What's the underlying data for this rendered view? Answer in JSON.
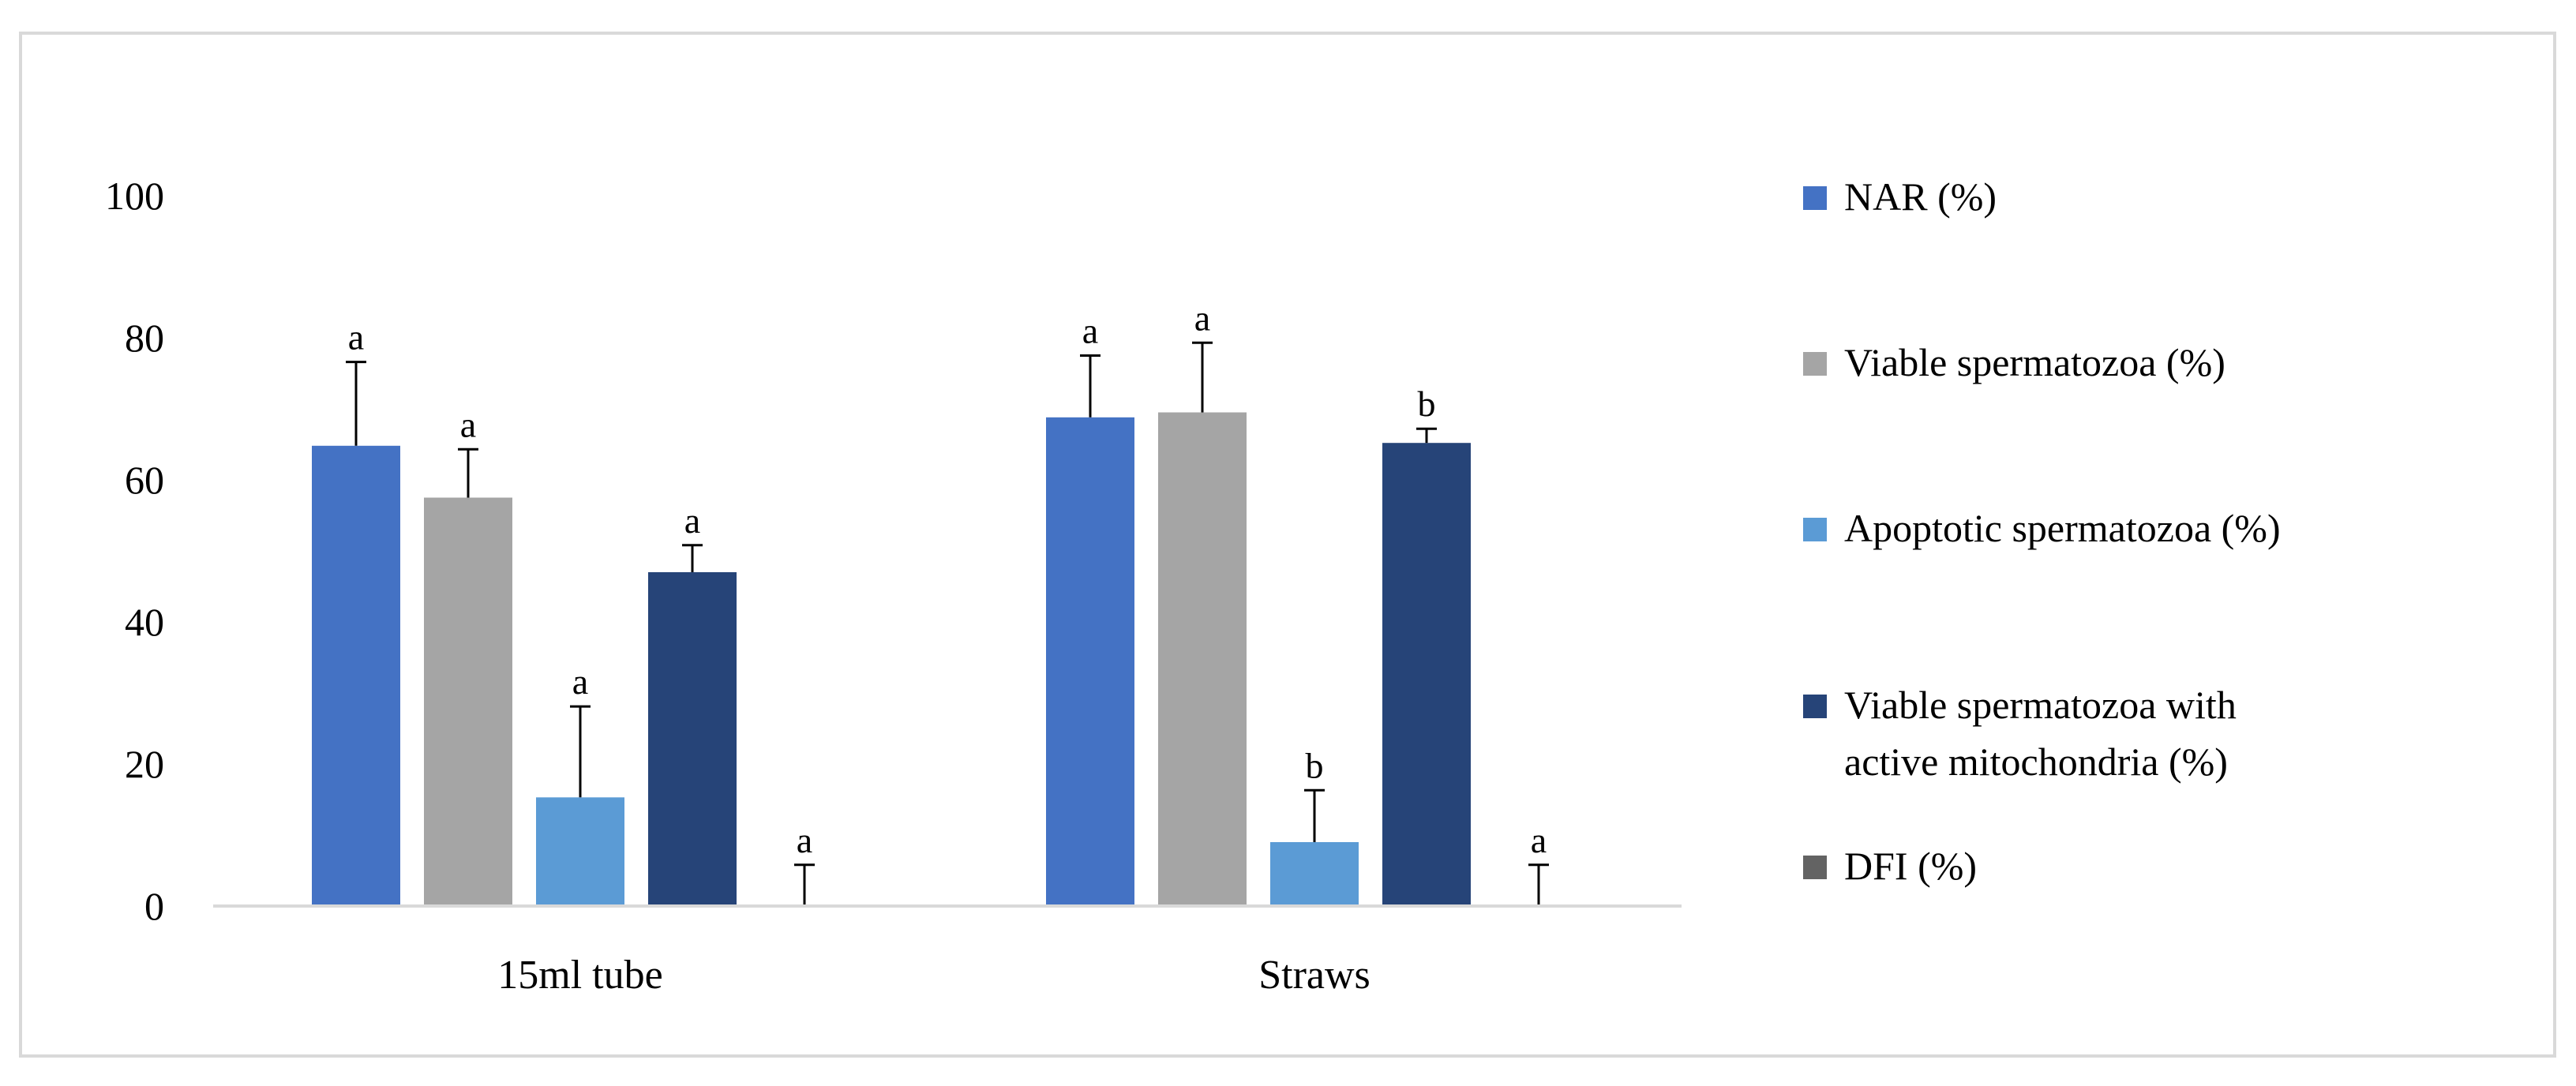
{
  "chart_data": {
    "type": "bar",
    "categories": [
      "15ml tube",
      "Straws"
    ],
    "ylim": [
      0,
      100
    ],
    "yticks": [
      "0",
      "20",
      "40",
      "60",
      "80",
      "100"
    ],
    "grid": false,
    "legend_position": "right",
    "series": [
      {
        "name": "NAR (%)",
        "color": "#4472c4",
        "values": [
          64.8,
          68.8
        ],
        "errors": [
          11.8,
          8.7
        ],
        "letters": [
          "a",
          "a"
        ]
      },
      {
        "name": "Viable spermatozoa (%)",
        "color": "#a5a5a5",
        "values": [
          57.5,
          69.5
        ],
        "errors": [
          6.8,
          9.8
        ],
        "letters": [
          "a",
          "a"
        ]
      },
      {
        "name": "Apoptotic spermatozoa (%)",
        "color": "#5b9bd5",
        "values": [
          15.3,
          9.0
        ],
        "errors": [
          12.8,
          7.3
        ],
        "letters": [
          "a",
          "b"
        ]
      },
      {
        "name": "Viable spermatozoa with active mitochondria  (%)",
        "legend_lines": [
          "Viable spermatozoa with",
          "active mitochondria  (%)"
        ],
        "color": "#264478",
        "values": [
          47.0,
          65.2
        ],
        "errors": [
          3.8,
          2.0
        ],
        "letters": [
          "a",
          "b"
        ]
      },
      {
        "name": "DFI (%)",
        "color": "#636363",
        "values": [
          0,
          0
        ],
        "errors": [
          5.8,
          5.8
        ],
        "letters": [
          "a",
          "a"
        ]
      }
    ]
  }
}
